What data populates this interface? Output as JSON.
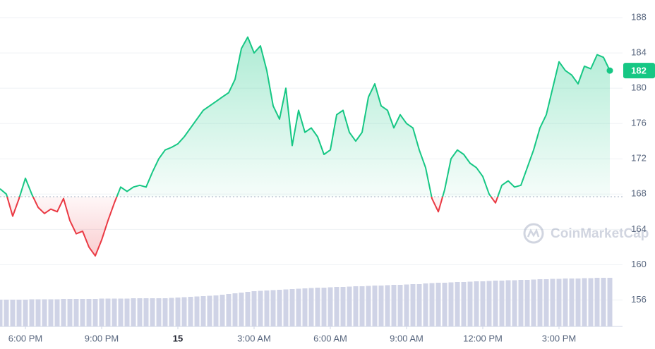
{
  "chart_data": {
    "type": "line",
    "watermark": "CoinMarketCap",
    "baseline": 167.7,
    "ylim": [
      153,
      190
    ],
    "yticks": [
      156,
      160,
      164,
      168,
      172,
      176,
      180,
      184,
      188
    ],
    "xlim": [
      0,
      96
    ],
    "xticks": [
      {
        "value": 4,
        "label": "6:00 PM"
      },
      {
        "value": 16,
        "label": "9:00 PM"
      },
      {
        "value": 28,
        "label": "15"
      },
      {
        "value": 40,
        "label": "3:00 AM"
      },
      {
        "value": 52,
        "label": "6:00 AM"
      },
      {
        "value": 64,
        "label": "9:00 AM"
      },
      {
        "value": 76,
        "label": "12:00 PM"
      },
      {
        "value": 88,
        "label": "3:00 PM"
      }
    ],
    "grid": true,
    "up_color": "#16c784",
    "down_color": "#ea3943",
    "series": [
      {
        "values": [
          168.6,
          168,
          165.5,
          167.5,
          169.8,
          168,
          166.5,
          165.8,
          166.3,
          166,
          167.5,
          165,
          163.5,
          163.8,
          162,
          161,
          162.8,
          165,
          167,
          168.8,
          168.3,
          168.8,
          169,
          168.8,
          170.5,
          172,
          173,
          173.3,
          173.7,
          174.5,
          175.5,
          176.5,
          177.5,
          178,
          178.5,
          179,
          179.5,
          181,
          184.5,
          185.8,
          184,
          184.8,
          182,
          178,
          176.5,
          180,
          173.5,
          177.5,
          175,
          175.5,
          174.5,
          172.5,
          173,
          177,
          177.5,
          175,
          174,
          175,
          179,
          180.5,
          178,
          177.5,
          175.5,
          177,
          176,
          175.5,
          173,
          171,
          167.5,
          166,
          168.5,
          172,
          173,
          172.5,
          171.5,
          171,
          170,
          168,
          167,
          169,
          169.5,
          168.8,
          169,
          171,
          173,
          175.5,
          177,
          180,
          183,
          182,
          181.5,
          180.5,
          182.5,
          182.2,
          183.8,
          183.5,
          182
        ]
      }
    ],
    "volume": {
      "color": "#cfd3e6",
      "values": [
        38,
        38,
        38,
        38,
        38,
        38.5,
        38.5,
        38.5,
        38.5,
        38.5,
        39,
        39,
        39,
        39,
        39,
        39,
        39.5,
        39.5,
        39.5,
        39.5,
        39.5,
        40,
        40,
        40,
        40,
        40,
        40,
        40.5,
        41,
        41.5,
        42,
        42.5,
        43,
        43.5,
        44,
        45,
        46,
        47,
        48,
        49,
        50,
        50.5,
        51,
        51.5,
        52,
        52.5,
        53,
        53.5,
        54,
        54.5,
        55,
        55,
        55.5,
        56,
        56,
        56.5,
        57,
        57,
        57.5,
        58,
        58,
        58.5,
        59,
        59,
        59.5,
        60,
        60,
        61,
        61.5,
        62,
        62,
        62.5,
        63,
        63,
        63.5,
        64,
        64,
        64.5,
        65,
        65,
        65.5,
        65.5,
        66,
        66,
        66.5,
        67,
        67,
        67.5,
        67.5,
        68,
        68,
        68,
        68.5,
        68.5,
        69,
        69,
        69
      ]
    }
  }
}
